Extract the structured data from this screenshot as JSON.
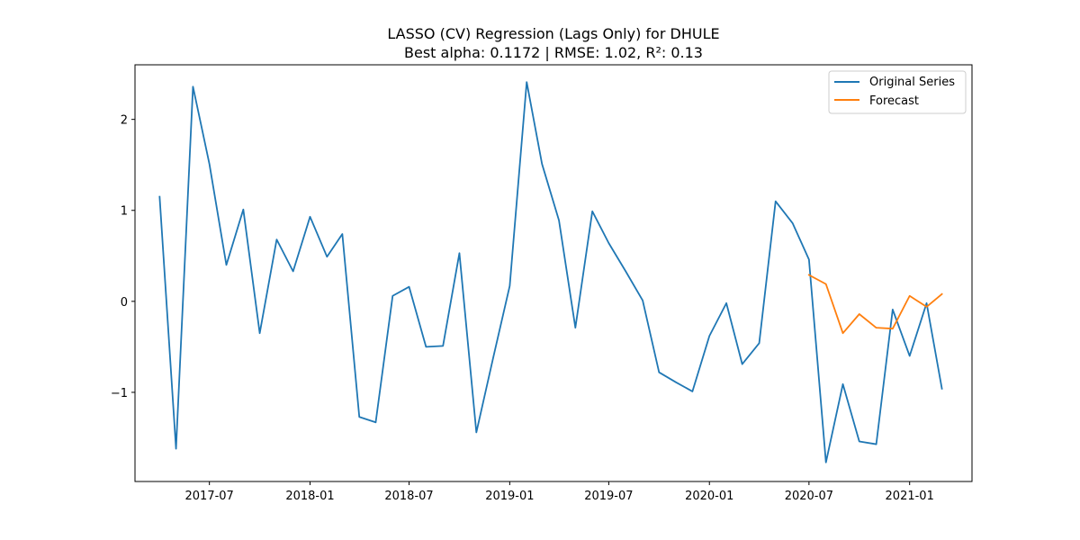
{
  "chart_data": {
    "type": "line",
    "title": "LASSO (CV) Regression (Lags Only) for DHULE",
    "subtitle": "Best alpha: 0.1172 | RMSE: 1.02, R²: 0.13",
    "xlabel": "",
    "ylabel": "",
    "x_range": [
      "2017-02-15",
      "2021-04-25"
    ],
    "ylim": [
      -1.98,
      2.6
    ],
    "x_ticks": [
      {
        "date": "2017-07-01",
        "label": "2017-07"
      },
      {
        "date": "2018-01-01",
        "label": "2018-01"
      },
      {
        "date": "2018-07-01",
        "label": "2018-07"
      },
      {
        "date": "2019-01-01",
        "label": "2019-01"
      },
      {
        "date": "2019-07-01",
        "label": "2019-07"
      },
      {
        "date": "2020-01-01",
        "label": "2020-01"
      },
      {
        "date": "2020-07-01",
        "label": "2020-07"
      },
      {
        "date": "2021-01-01",
        "label": "2021-01"
      }
    ],
    "y_ticks": [
      {
        "value": 2,
        "label": "2"
      },
      {
        "value": 1,
        "label": "1"
      },
      {
        "value": 0,
        "label": "0"
      },
      {
        "value": -1,
        "label": "−1"
      }
    ],
    "grid": false,
    "legend_position": "top-right",
    "series": [
      {
        "name": "Original Series",
        "color": "#1f77b4",
        "x": [
          "2017-04-01",
          "2017-05-01",
          "2017-06-01",
          "2017-07-01",
          "2017-08-01",
          "2017-09-01",
          "2017-10-01",
          "2017-11-01",
          "2017-12-01",
          "2018-01-01",
          "2018-02-01",
          "2018-03-01",
          "2018-04-01",
          "2018-05-01",
          "2018-06-01",
          "2018-07-01",
          "2018-08-01",
          "2018-09-01",
          "2018-10-01",
          "2018-11-01",
          "2018-12-01",
          "2019-01-01",
          "2019-02-01",
          "2019-03-01",
          "2019-04-01",
          "2019-05-01",
          "2019-06-01",
          "2019-07-01",
          "2019-08-01",
          "2019-09-01",
          "2019-10-01",
          "2019-11-01",
          "2019-12-01",
          "2020-01-01",
          "2020-02-01",
          "2020-03-01",
          "2020-04-01",
          "2020-05-01",
          "2020-06-01",
          "2020-07-01",
          "2020-08-01",
          "2020-09-01",
          "2020-10-01",
          "2020-11-01",
          "2020-12-01",
          "2021-01-01",
          "2021-02-01",
          "2021-03-01"
        ],
        "y": [
          1.15,
          -1.62,
          2.36,
          1.51,
          0.4,
          1.01,
          -0.35,
          0.68,
          0.33,
          0.93,
          0.49,
          0.74,
          -1.27,
          -1.33,
          0.06,
          0.16,
          -0.5,
          -0.49,
          0.53,
          -1.44,
          -0.64,
          0.17,
          2.41,
          1.51,
          0.89,
          -0.29,
          0.99,
          0.64,
          0.33,
          0.01,
          -0.78,
          -0.89,
          -0.99,
          -0.38,
          -0.02,
          -0.69,
          -0.46,
          1.1,
          0.86,
          0.46,
          -1.77,
          -0.91,
          -1.54,
          -1.57,
          -0.09,
          -0.6,
          -0.02,
          -0.96
        ]
      },
      {
        "name": "Forecast",
        "color": "#ff7f0e",
        "x": [
          "2020-07-01",
          "2020-08-01",
          "2020-09-01",
          "2020-10-01",
          "2020-11-01",
          "2020-12-01",
          "2021-01-01",
          "2021-02-01",
          "2021-03-01"
        ],
        "y": [
          0.29,
          0.19,
          -0.35,
          -0.14,
          -0.29,
          -0.3,
          0.06,
          -0.06,
          0.08
        ]
      }
    ]
  }
}
